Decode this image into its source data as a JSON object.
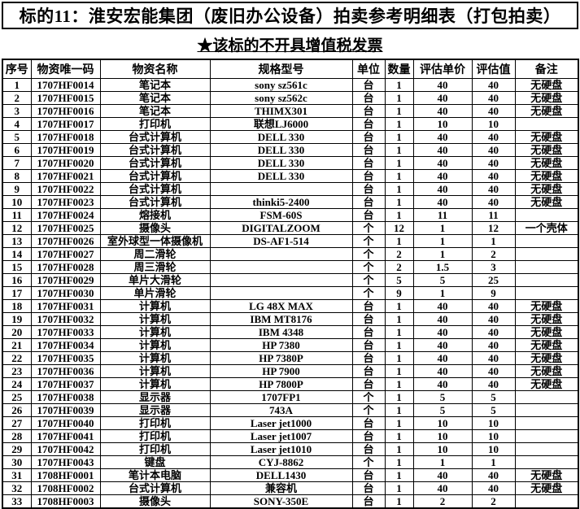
{
  "title": "标的11：淮安宏能集团（废旧办公设备）拍卖参考明细表（打包拍卖）",
  "subtitle": "★该标的不开具增值税发票",
  "colors": {
    "text": "#000000",
    "background": "#ffffff",
    "border": "#000000"
  },
  "table": {
    "columns": [
      "序号",
      "物资唯一码",
      "物资名称",
      "规格型号",
      "单位",
      "数量",
      "评估单价",
      "评估值",
      "备注"
    ],
    "rows": [
      [
        "1",
        "1707HF0014",
        "笔记本",
        "sony sz561c",
        "台",
        "1",
        "40",
        "40",
        "无硬盘"
      ],
      [
        "2",
        "1707HF0015",
        "笔记本",
        "sony sz562c",
        "台",
        "1",
        "40",
        "40",
        "无硬盘"
      ],
      [
        "3",
        "1707HF0016",
        "笔记本",
        "THIMX301",
        "台",
        "1",
        "40",
        "40",
        "无硬盘"
      ],
      [
        "4",
        "1707HF0017",
        "打印机",
        "联想LJ6000",
        "台",
        "1",
        "10",
        "10",
        ""
      ],
      [
        "5",
        "1707HF0018",
        "台式计算机",
        "DELL 330",
        "台",
        "1",
        "40",
        "40",
        "无硬盘"
      ],
      [
        "6",
        "1707HF0019",
        "台式计算机",
        "DELL 330",
        "台",
        "1",
        "40",
        "40",
        "无硬盘"
      ],
      [
        "7",
        "1707HF0020",
        "台式计算机",
        "DELL 330",
        "台",
        "1",
        "40",
        "40",
        "无硬盘"
      ],
      [
        "8",
        "1707HF0021",
        "台式计算机",
        "DELL 330",
        "台",
        "1",
        "40",
        "40",
        "无硬盘"
      ],
      [
        "9",
        "1707HF0022",
        "台式计算机",
        "",
        "台",
        "1",
        "40",
        "40",
        "无硬盘"
      ],
      [
        "10",
        "1707HF0023",
        "台式计算机",
        "thinki5-2400",
        "台",
        "1",
        "40",
        "40",
        "无硬盘"
      ],
      [
        "11",
        "1707HF0024",
        "熔接机",
        "FSM-60S",
        "台",
        "1",
        "11",
        "11",
        ""
      ],
      [
        "12",
        "1707HF0025",
        "摄像头",
        "DIGITALZOOM",
        "个",
        "12",
        "1",
        "12",
        "一个壳体"
      ],
      [
        "13",
        "1707HF0026",
        "室外球型一体摄像机",
        "DS-AF1-514",
        "个",
        "1",
        "1",
        "1",
        ""
      ],
      [
        "14",
        "1707HF0027",
        "周二滑轮",
        "",
        "个",
        "2",
        "1",
        "2",
        ""
      ],
      [
        "15",
        "1707HF0028",
        "周三滑轮",
        "",
        "个",
        "2",
        "1.5",
        "3",
        ""
      ],
      [
        "16",
        "1707HF0029",
        "单片大滑轮",
        "",
        "个",
        "5",
        "5",
        "25",
        ""
      ],
      [
        "17",
        "1707HF0030",
        "单片滑轮",
        "",
        "个",
        "9",
        "1",
        "9",
        ""
      ],
      [
        "18",
        "1707HF0031",
        "计算机",
        "LG 48X MAX",
        "台",
        "1",
        "40",
        "40",
        "无硬盘"
      ],
      [
        "19",
        "1707HF0032",
        "计算机",
        "IBM MT8176",
        "台",
        "1",
        "40",
        "40",
        "无硬盘"
      ],
      [
        "20",
        "1707HF0033",
        "计算机",
        "IBM 4348",
        "台",
        "1",
        "40",
        "40",
        "无硬盘"
      ],
      [
        "21",
        "1707HF0034",
        "计算机",
        "HP 7380",
        "台",
        "1",
        "40",
        "40",
        "无硬盘"
      ],
      [
        "22",
        "1707HF0035",
        "计算机",
        "HP 7380P",
        "台",
        "1",
        "40",
        "40",
        "无硬盘"
      ],
      [
        "23",
        "1707HF0036",
        "计算机",
        "HP 7900",
        "台",
        "1",
        "40",
        "40",
        "无硬盘"
      ],
      [
        "24",
        "1707HF0037",
        "计算机",
        "HP 7800P",
        "台",
        "1",
        "40",
        "40",
        "无硬盘"
      ],
      [
        "25",
        "1707HF0038",
        "显示器",
        "1707FP1",
        "个",
        "1",
        "5",
        "5",
        ""
      ],
      [
        "26",
        "1707HF0039",
        "显示器",
        "743A",
        "个",
        "1",
        "5",
        "5",
        ""
      ],
      [
        "27",
        "1707HF0040",
        "打印机",
        "Laser jet1000",
        "台",
        "1",
        "10",
        "10",
        ""
      ],
      [
        "28",
        "1707HF0041",
        "打印机",
        "Laser jet1007",
        "台",
        "1",
        "10",
        "10",
        ""
      ],
      [
        "29",
        "1707HF0042",
        "打印机",
        "Laser jet1010",
        "台",
        "1",
        "10",
        "10",
        ""
      ],
      [
        "30",
        "1707HF0043",
        "键盘",
        "CYJ-8862",
        "个",
        "1",
        "1",
        "1",
        ""
      ],
      [
        "31",
        "1708HF0001",
        "笔计本电脑",
        "DELL1430",
        "台",
        "1",
        "40",
        "40",
        "无硬盘"
      ],
      [
        "32",
        "1708HF0002",
        "台式计算机",
        "兼容机",
        "台",
        "1",
        "40",
        "40",
        "无硬盘"
      ],
      [
        "33",
        "1708HF0003",
        "摄像头",
        "SONY-350E",
        "台",
        "1",
        "2",
        "2",
        ""
      ]
    ]
  }
}
